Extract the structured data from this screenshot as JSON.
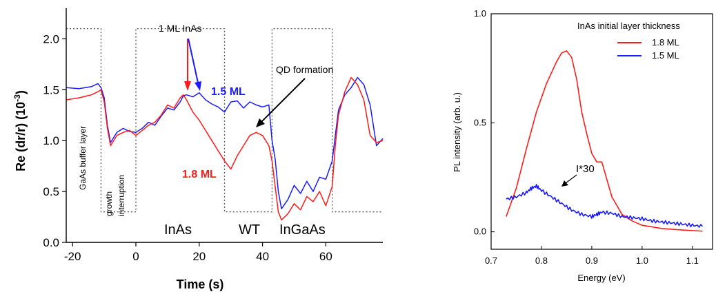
{
  "chart_data": [
    {
      "type": "line",
      "xlabel": "Time (s)",
      "ylabel": "Re (dr/r) (10",
      "ylabel_sup": "-3",
      "ylabel_close": ")",
      "xlim": [
        -22,
        78
      ],
      "ylim": [
        0,
        2.3
      ],
      "xticks": [
        -20,
        0,
        20,
        40,
        60
      ],
      "yticks": [
        0.0,
        0.5,
        1.0,
        1.5,
        2.0
      ],
      "ytick_labels": [
        "0.0",
        "0.5",
        "1.0",
        "1.5",
        "2.0"
      ],
      "colors": {
        "blue": "#1a1aff",
        "red": "#ff1a1a",
        "dotted": "#555555"
      },
      "shutter_levels": [
        0.3,
        2.1
      ],
      "shutter_transitions": [
        -11,
        0,
        28,
        43,
        62
      ],
      "shutter_start": -22,
      "shutter_end": 78,
      "region_labels": [
        {
          "text": "InAs",
          "x": 14
        },
        {
          "text": "WT",
          "x": 36
        },
        {
          "text": "InGaAs",
          "x": 52
        }
      ],
      "vertical_labels": [
        {
          "text": "GaAs buffer layer",
          "x": -15.5
        },
        {
          "text": "growth",
          "x": -9
        },
        {
          "text": "interruption",
          "x": -5.5
        }
      ],
      "annotations": {
        "one_ml": "1 ML InAs",
        "qd_formation": "QD formation",
        "blue_label": "1.5 ML",
        "red_label": "1.8 ML"
      },
      "series": [
        {
          "name": "1.5 ML",
          "color": "#1a1aff",
          "x": [
            -22,
            -18,
            -14,
            -12,
            -11,
            -10,
            -9,
            -8,
            -6,
            -4,
            -2,
            0,
            2,
            4,
            6,
            8,
            10,
            12,
            14,
            15,
            16,
            18,
            20,
            22,
            24,
            26,
            28,
            30,
            32,
            34,
            36,
            38,
            40,
            42,
            43,
            44,
            45,
            46,
            48,
            50,
            52,
            54,
            56,
            58,
            60,
            62,
            63,
            64,
            66,
            68,
            70,
            72,
            74,
            76,
            78
          ],
          "y": [
            1.52,
            1.51,
            1.53,
            1.56,
            1.52,
            1.42,
            1.15,
            0.98,
            1.08,
            1.12,
            1.09,
            1.08,
            1.12,
            1.18,
            1.15,
            1.24,
            1.32,
            1.3,
            1.38,
            1.44,
            1.45,
            1.43,
            1.47,
            1.4,
            1.36,
            1.33,
            1.28,
            1.38,
            1.39,
            1.32,
            1.38,
            1.35,
            1.33,
            1.35,
            1.0,
            0.82,
            0.5,
            0.33,
            0.42,
            0.56,
            0.48,
            0.6,
            0.5,
            0.64,
            0.62,
            0.8,
            1.05,
            1.3,
            1.45,
            1.52,
            1.62,
            1.55,
            1.35,
            0.95,
            1.02
          ]
        },
        {
          "name": "1.8 ML",
          "color": "#ff1a1a",
          "x": [
            -22,
            -18,
            -14,
            -12,
            -11,
            -10,
            -9,
            -8,
            -6,
            -4,
            -2,
            0,
            2,
            4,
            6,
            8,
            10,
            12,
            14,
            15,
            16,
            18,
            20,
            22,
            24,
            26,
            28,
            30,
            32,
            34,
            36,
            38,
            40,
            42,
            43,
            44,
            45,
            46,
            48,
            50,
            52,
            54,
            56,
            58,
            60,
            62,
            63,
            64,
            66,
            68,
            70,
            72,
            74,
            76,
            78
          ],
          "y": [
            1.4,
            1.42,
            1.45,
            1.48,
            1.5,
            1.38,
            1.12,
            0.95,
            1.05,
            1.08,
            1.1,
            1.05,
            1.1,
            1.15,
            1.18,
            1.25,
            1.35,
            1.32,
            1.42,
            1.45,
            1.4,
            1.28,
            1.2,
            1.1,
            1.0,
            0.9,
            0.8,
            0.72,
            0.85,
            0.95,
            1.05,
            1.08,
            1.05,
            0.95,
            0.8,
            0.55,
            0.3,
            0.22,
            0.28,
            0.38,
            0.32,
            0.45,
            0.4,
            0.5,
            0.36,
            0.55,
            0.95,
            1.25,
            1.48,
            1.62,
            1.55,
            1.4,
            1.05,
            0.98,
            1.0
          ]
        }
      ]
    },
    {
      "type": "line",
      "xlabel": "Energy (eV)",
      "ylabel": "PL intensity (arb. u.)",
      "xlim": [
        0.7,
        1.14
      ],
      "ylim": [
        -0.08,
        1.0
      ],
      "xticks": [
        0.7,
        0.8,
        0.9,
        1.0,
        1.1
      ],
      "xtick_labels": [
        "0.7",
        "0.8",
        "0.9",
        "1.0",
        "1.1"
      ],
      "yticks": [
        0.0,
        0.5,
        1.0
      ],
      "ytick_labels": [
        "0.0",
        "0.5",
        "1.0"
      ],
      "legend_title": "InAs initial layer thickness",
      "legend_position": "top-right",
      "annotation": "I*30",
      "series": [
        {
          "name": "1.8 ML",
          "color": "#ff1a1a",
          "x": [
            0.73,
            0.75,
            0.77,
            0.79,
            0.81,
            0.83,
            0.84,
            0.85,
            0.86,
            0.87,
            0.88,
            0.89,
            0.9,
            0.91,
            0.92,
            0.93,
            0.94,
            0.96,
            0.98,
            1.0,
            1.04,
            1.08,
            1.12
          ],
          "y": [
            0.07,
            0.2,
            0.38,
            0.55,
            0.68,
            0.78,
            0.82,
            0.83,
            0.8,
            0.7,
            0.55,
            0.45,
            0.36,
            0.32,
            0.32,
            0.24,
            0.16,
            0.08,
            0.05,
            0.03,
            0.015,
            0.008,
            0.003
          ]
        },
        {
          "name": "1.5 ML",
          "color": "#1a1aff",
          "x": [
            0.73,
            0.75,
            0.77,
            0.78,
            0.79,
            0.8,
            0.82,
            0.84,
            0.86,
            0.88,
            0.9,
            0.91,
            0.92,
            0.94,
            0.96,
            0.98,
            1.0,
            1.02,
            1.04,
            1.06,
            1.08,
            1.1,
            1.12
          ],
          "y": [
            0.15,
            0.16,
            0.18,
            0.2,
            0.21,
            0.19,
            0.16,
            0.13,
            0.1,
            0.08,
            0.07,
            0.08,
            0.09,
            0.085,
            0.07,
            0.065,
            0.06,
            0.05,
            0.045,
            0.04,
            0.035,
            0.03,
            0.025
          ]
        }
      ]
    }
  ]
}
